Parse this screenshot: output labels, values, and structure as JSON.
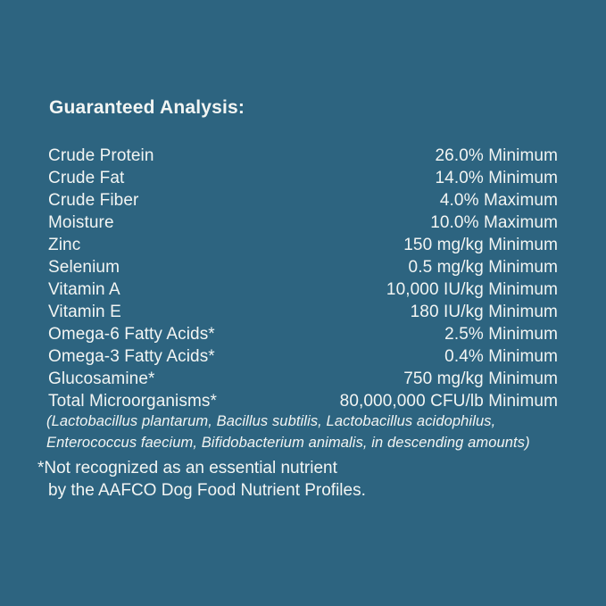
{
  "colors": {
    "background": "#2d6480",
    "text": "#f2f5f3"
  },
  "header": {
    "title": "Guaranteed Analysis:"
  },
  "analysis": {
    "rows": [
      {
        "label": "Crude Protein",
        "value": "26.0% Minimum"
      },
      {
        "label": "Crude Fat",
        "value": "14.0% Minimum"
      },
      {
        "label": "Crude Fiber",
        "value": "4.0% Maximum"
      },
      {
        "label": "Moisture",
        "value": "10.0% Maximum"
      },
      {
        "label": "Zinc",
        "value": "150 mg/kg Minimum"
      },
      {
        "label": "Selenium",
        "value": "0.5 mg/kg Minimum"
      },
      {
        "label": "Vitamin A",
        "value": "10,000 IU/kg Minimum"
      },
      {
        "label": "Vitamin E",
        "value": "180 IU/kg Minimum"
      },
      {
        "label": "Omega-6 Fatty Acids*",
        "value": "2.5% Minimum"
      },
      {
        "label": "Omega-3 Fatty Acids*",
        "value": "0.4% Minimum"
      },
      {
        "label": "Glucosamine*",
        "value": "750 mg/kg Minimum"
      },
      {
        "label": "Total Microorganisms*",
        "value": "80,000,000 CFU/lb Minimum"
      }
    ],
    "microorganisms_note": {
      "line1": "(Lactobacillus plantarum, Bacillus subtilis, Lactobacillus acidophilus,",
      "line2": "Enterococcus faecium, Bifidobacterium animalis, in descending amounts)"
    }
  },
  "footnote": {
    "line1": "*Not recognized as an essential nutrient",
    "line2": "by the AAFCO Dog Food Nutrient Profiles."
  }
}
